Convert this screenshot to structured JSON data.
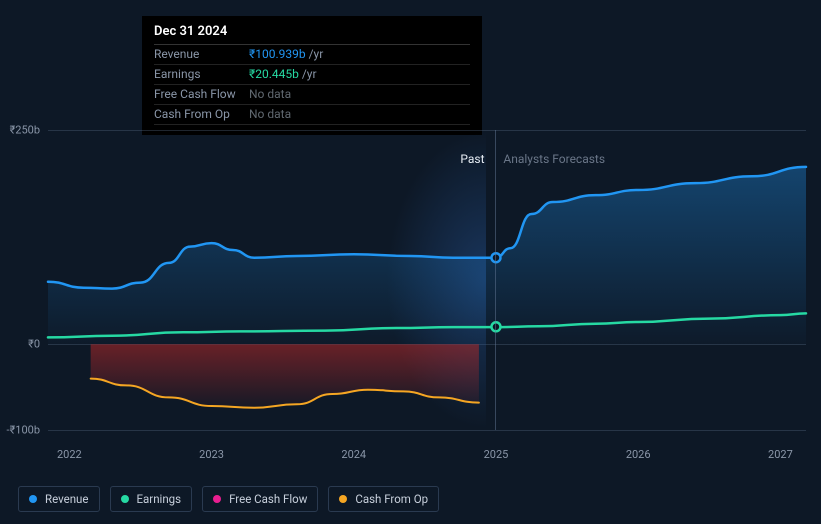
{
  "chart": {
    "type": "line-area",
    "background_color": "#0d1826",
    "grid_color": "rgba(90,110,135,0.35)",
    "text_color": "#8a96a8",
    "y_axis": {
      "ticks": [
        {
          "label": "₹250b",
          "value": 250
        },
        {
          "label": "₹0",
          "value": 0
        },
        {
          "label": "-₹100b",
          "value": -100
        }
      ],
      "min": -100,
      "max": 250
    },
    "x_axis": {
      "ticks": [
        {
          "label": "2022",
          "value": 2022
        },
        {
          "label": "2023",
          "value": 2023
        },
        {
          "label": "2024",
          "value": 2024
        },
        {
          "label": "2025",
          "value": 2025
        },
        {
          "label": "2026",
          "value": 2026
        },
        {
          "label": "2027",
          "value": 2027
        }
      ],
      "min": 2021.85,
      "max": 2027.18
    },
    "divider": {
      "x_value": 2024.996,
      "past_label": "Past",
      "past_color": "#e8eef5",
      "forecast_label": "Analysts Forecasts",
      "forecast_color": "#6a7688"
    },
    "series": {
      "revenue": {
        "label": "Revenue",
        "color": "#2196f3",
        "area_top_color": "rgba(33,150,243,0.35)",
        "area_bottom_color": "rgba(33,150,243,0.02)",
        "line_width": 2.5,
        "points": [
          [
            2021.85,
            73
          ],
          [
            2022.1,
            66
          ],
          [
            2022.3,
            65
          ],
          [
            2022.5,
            72
          ],
          [
            2022.7,
            95
          ],
          [
            2022.85,
            114
          ],
          [
            2023.0,
            118
          ],
          [
            2023.15,
            110
          ],
          [
            2023.3,
            101
          ],
          [
            2023.6,
            103
          ],
          [
            2024.0,
            105
          ],
          [
            2024.4,
            103
          ],
          [
            2024.7,
            101
          ],
          [
            2025.0,
            101
          ],
          [
            2025.1,
            112
          ],
          [
            2025.25,
            152
          ],
          [
            2025.4,
            166
          ],
          [
            2025.7,
            174
          ],
          [
            2026.0,
            180
          ],
          [
            2026.4,
            188
          ],
          [
            2026.8,
            196
          ],
          [
            2027.18,
            207
          ]
        ]
      },
      "earnings": {
        "label": "Earnings",
        "color": "#26d9a3",
        "line_width": 2.5,
        "points": [
          [
            2021.85,
            8
          ],
          [
            2022.3,
            10
          ],
          [
            2022.8,
            14
          ],
          [
            2023.2,
            15
          ],
          [
            2023.8,
            16
          ],
          [
            2024.3,
            19
          ],
          [
            2024.7,
            20
          ],
          [
            2025.0,
            20
          ],
          [
            2025.3,
            21
          ],
          [
            2025.7,
            24
          ],
          [
            2026.0,
            26
          ],
          [
            2026.5,
            30
          ],
          [
            2027.0,
            34
          ],
          [
            2027.18,
            36
          ]
        ]
      },
      "free_cash_flow": {
        "label": "Free Cash Flow",
        "color": "#e91e90",
        "line_width": 2,
        "points": []
      },
      "cash_from_op": {
        "label": "Cash From Op",
        "color": "#f5a623",
        "area_top_color": "rgba(180,40,40,0.55)",
        "area_bottom_color": "rgba(180,40,40,0.05)",
        "line_width": 2,
        "points": [
          [
            2022.15,
            -40
          ],
          [
            2022.4,
            -48
          ],
          [
            2022.7,
            -62
          ],
          [
            2023.0,
            -72
          ],
          [
            2023.3,
            -74
          ],
          [
            2023.6,
            -70
          ],
          [
            2023.85,
            -58
          ],
          [
            2024.1,
            -53
          ],
          [
            2024.35,
            -55
          ],
          [
            2024.6,
            -62
          ],
          [
            2024.88,
            -68
          ]
        ]
      }
    },
    "markers": [
      {
        "series": "revenue",
        "x": 2025.0,
        "y": 101,
        "fill": "#0d1826",
        "stroke": "#2196f3"
      },
      {
        "series": "earnings",
        "x": 2025.0,
        "y": 20.4,
        "fill": "#0d1826",
        "stroke": "#26d9a3"
      }
    ]
  },
  "tooltip": {
    "title": "Dec 31 2024",
    "rows": [
      {
        "label": "Revenue",
        "value": "₹100.939b",
        "suffix": "/yr",
        "value_color": "#2196f3"
      },
      {
        "label": "Earnings",
        "value": "₹20.445b",
        "suffix": "/yr",
        "value_color": "#26d9a3"
      },
      {
        "label": "Free Cash Flow",
        "no_data": "No data"
      },
      {
        "label": "Cash From Op",
        "no_data": "No data"
      }
    ]
  },
  "legend": {
    "items": [
      {
        "key": "revenue",
        "label": "Revenue",
        "color": "#2196f3"
      },
      {
        "key": "earnings",
        "label": "Earnings",
        "color": "#26d9a3"
      },
      {
        "key": "free_cash_flow",
        "label": "Free Cash Flow",
        "color": "#e91e90"
      },
      {
        "key": "cash_from_op",
        "label": "Cash From Op",
        "color": "#f5a623"
      }
    ]
  }
}
